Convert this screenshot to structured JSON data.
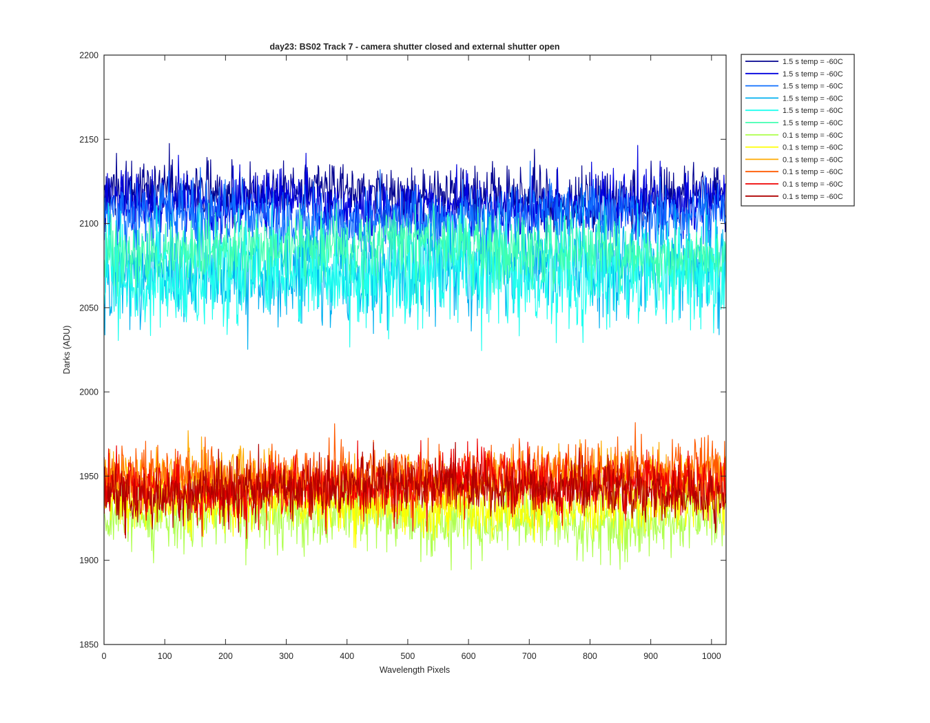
{
  "chart_data": {
    "type": "line",
    "title": "day23: BS02  Track 7 - camera shutter closed and external shutter open",
    "xlabel": "Wavelength Pixels",
    "ylabel": "Darks (ADU)",
    "xlim": [
      0,
      1024
    ],
    "ylim": [
      1850,
      2200
    ],
    "xticks": [
      0,
      100,
      200,
      300,
      400,
      500,
      600,
      700,
      800,
      900,
      1000
    ],
    "yticks": [
      1850,
      1900,
      1950,
      2000,
      2050,
      2100,
      2150,
      2200
    ],
    "grid": false,
    "legend_position": "outside-top-right",
    "n_points": 1024,
    "series": [
      {
        "name": "1.5 s temp = -60C",
        "color": "#00008F",
        "mean": 2117,
        "sd": 9,
        "min": 2095,
        "max": 2160
      },
      {
        "name": "1.5 s temp = -60C",
        "color": "#0000DF",
        "mean": 2111,
        "sd": 9,
        "min": 2088,
        "max": 2152
      },
      {
        "name": "1.5 s temp = -60C",
        "color": "#0F6FFF",
        "mean": 2104,
        "sd": 10,
        "min": 2078,
        "max": 2145
      },
      {
        "name": "1.5 s temp = -60C",
        "color": "#00B0F0",
        "mean": 2074,
        "sd": 15,
        "min": 2015,
        "max": 2118
      },
      {
        "name": "1.5 s temp = -60C",
        "color": "#1FFFEF",
        "mean": 2070,
        "sd": 16,
        "min": 1993,
        "max": 2112
      },
      {
        "name": "1.5 s temp = -60C",
        "color": "#40FFB0",
        "mean": 2084,
        "sd": 10,
        "min": 2040,
        "max": 2112
      },
      {
        "name": "0.1 s temp = -60C",
        "color": "#AFFF50",
        "mean": 1925,
        "sd": 10,
        "min": 1889,
        "max": 1955
      },
      {
        "name": "0.1 s temp = -60C",
        "color": "#FFFF00",
        "mean": 1933,
        "sd": 9,
        "min": 1895,
        "max": 1960
      },
      {
        "name": "0.1 s temp = -60C",
        "color": "#FFAA00",
        "mean": 1948,
        "sd": 9,
        "min": 1915,
        "max": 1977
      },
      {
        "name": "0.1 s temp = -60C",
        "color": "#FF5A00",
        "mean": 1950,
        "sd": 9,
        "min": 1918,
        "max": 1988
      },
      {
        "name": "0.1 s temp = -60C",
        "color": "#EF0000",
        "mean": 1944,
        "sd": 9,
        "min": 1890,
        "max": 1978
      },
      {
        "name": "0.1 s temp = -60C",
        "color": "#AF0000",
        "mean": 1942,
        "sd": 8,
        "min": 1905,
        "max": 1970
      }
    ]
  }
}
